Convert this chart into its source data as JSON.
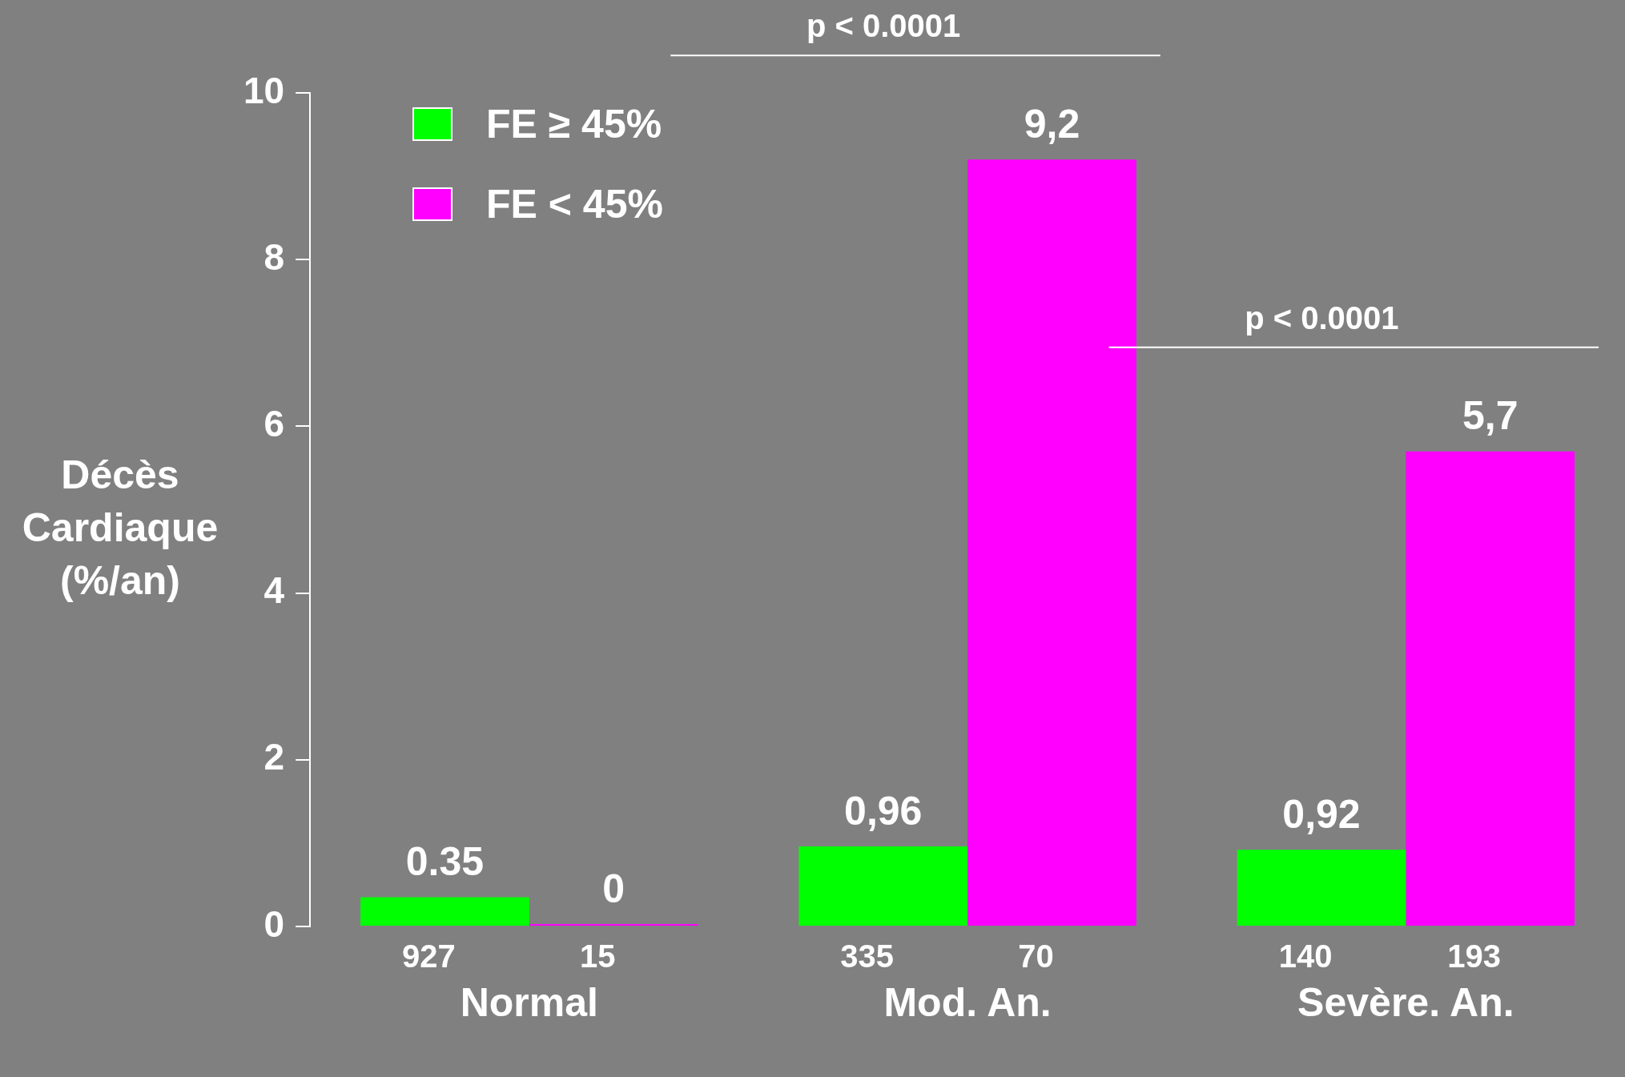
{
  "chart_data": {
    "type": "bar",
    "ylabel": "Décès Cardiaque (%/an)",
    "categories": [
      "Normal",
      "Mod. An.",
      "Sevère. An."
    ],
    "series": [
      {
        "name": "FE ≥ 45%",
        "color": "#00ff00",
        "values": [
          0.35,
          0.96,
          0.92
        ],
        "value_labels": [
          "0.35",
          "0,96",
          "0,92"
        ]
      },
      {
        "name": "FE < 45%",
        "color": "#ff00ff",
        "values": [
          0,
          9.2,
          5.7
        ],
        "value_labels": [
          "0",
          "9,2",
          "5,7"
        ]
      }
    ],
    "ylim": [
      0,
      10
    ],
    "yticks": [
      0,
      2,
      4,
      6,
      8,
      10
    ],
    "annotations": [
      "927",
      "15",
      "335",
      "70",
      "140",
      "193",
      "p < 0.0001",
      "p < 0.0001"
    ],
    "grid": false,
    "legend": "top left"
  }
}
